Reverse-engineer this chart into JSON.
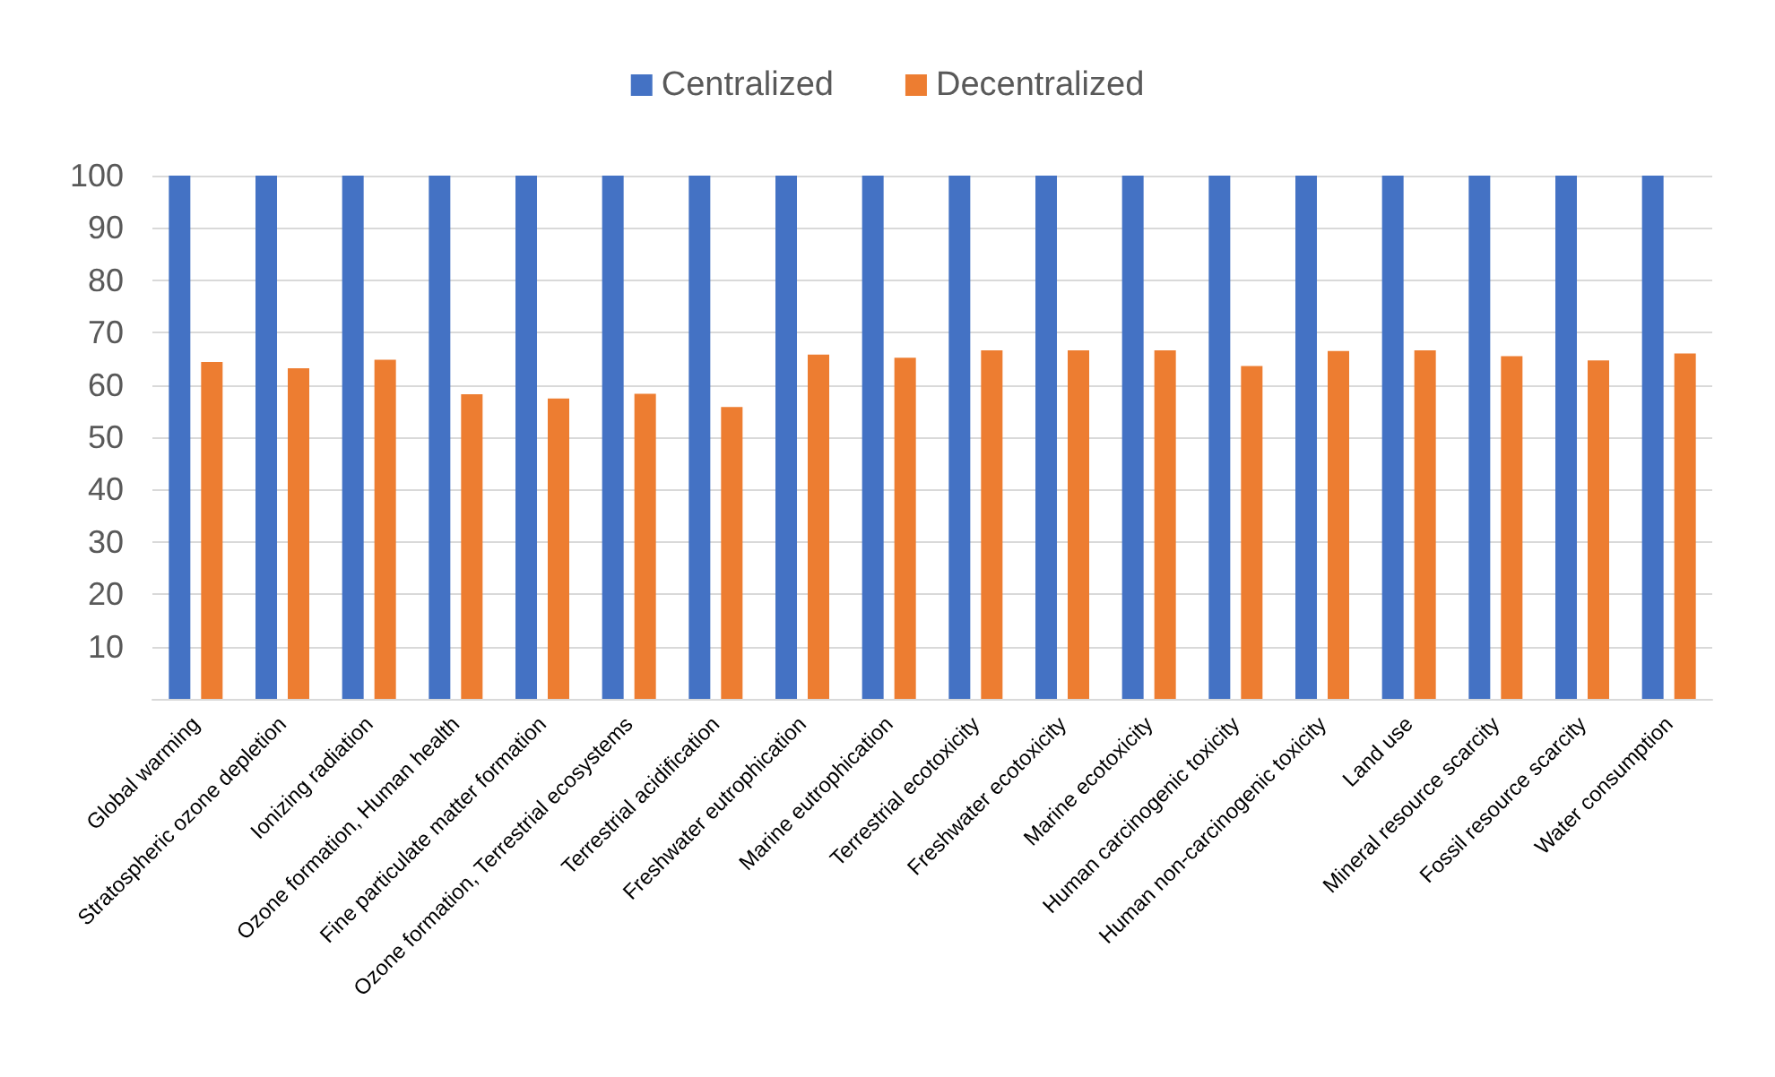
{
  "chart_data": {
    "type": "bar",
    "categories": [
      "Global warming",
      "Stratospheric ozone depletion",
      "Ionizing radiation",
      "Ozone formation, Human health",
      "Fine particulate matter formation",
      "Ozone formation, Terrestrial ecosystems",
      "Terrestrial acidification",
      "Freshwater eutrophication",
      "Marine eutrophication",
      "Terrestrial ecotoxicity",
      "Freshwater ecotoxicity",
      "Marine ecotoxicity",
      "Human carcinogenic toxicity",
      "Human non-carcinogenic toxicity",
      "Land use",
      "Mineral resource scarcity",
      "Fossil resource scarcity",
      "Water consumption"
    ],
    "series": [
      {
        "name": "Centralized",
        "color": "#4472c4",
        "values": [
          100,
          100,
          100,
          100,
          100,
          100,
          100,
          100,
          100,
          100,
          100,
          100,
          100,
          100,
          100,
          100,
          100,
          100
        ]
      },
      {
        "name": "Decentralized",
        "color": "#ed7d31",
        "values": [
          64.4,
          63.2,
          64.8,
          58.2,
          57.4,
          58.3,
          55.8,
          65.8,
          65.2,
          66.6,
          66.6,
          66.6,
          63.6,
          66.5,
          66.6,
          65.5,
          64.7,
          66
        ]
      }
    ],
    "ylim": [
      0,
      100
    ],
    "yticks": [
      10,
      20,
      30,
      40,
      50,
      60,
      70,
      80,
      90,
      100
    ],
    "grid": "y",
    "legend": "top"
  }
}
